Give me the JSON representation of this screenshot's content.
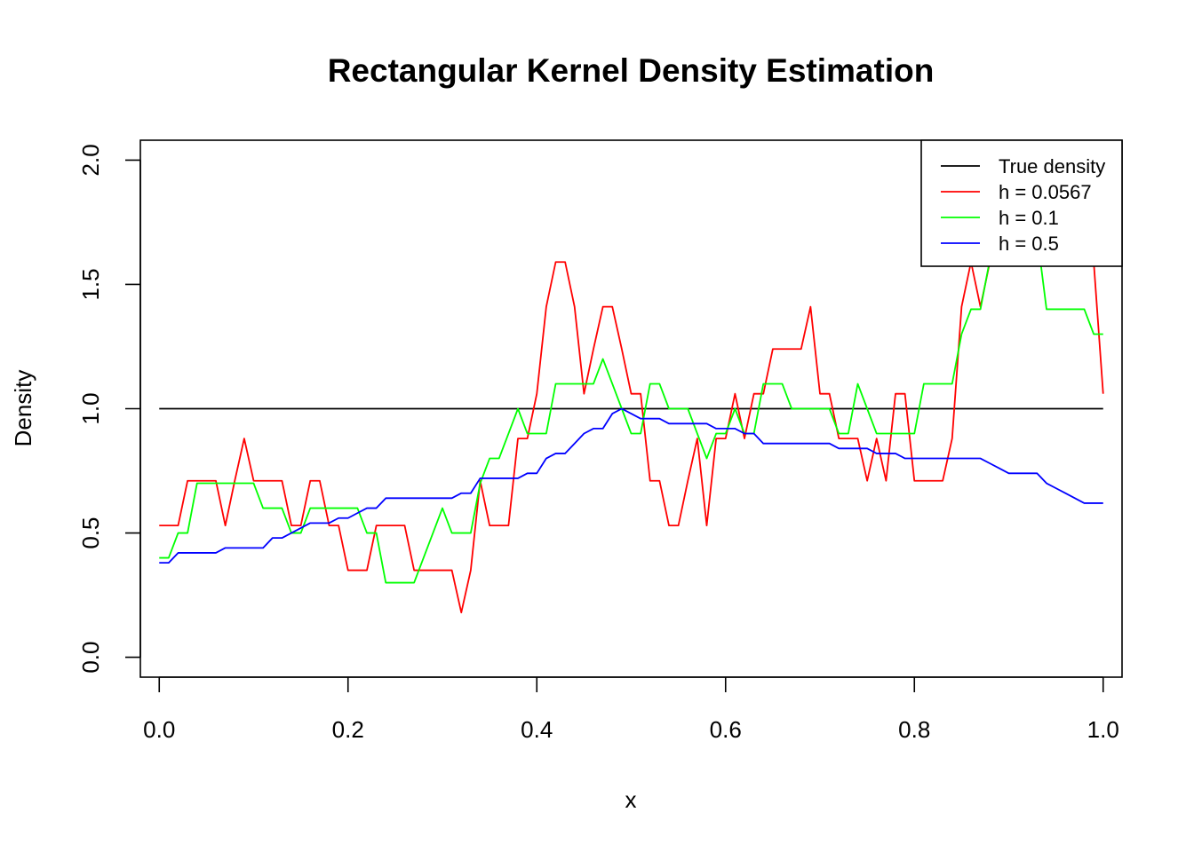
{
  "chart_data": {
    "type": "line",
    "title": "Rectangular Kernel Density Estimation",
    "xlabel": "x",
    "ylabel": "Density",
    "xlim": [
      -0.02,
      1.02
    ],
    "ylim": [
      -0.08,
      2.08
    ],
    "x_ticks": [
      "0.0",
      "0.2",
      "0.4",
      "0.6",
      "0.8",
      "1.0"
    ],
    "y_ticks": [
      "0.0",
      "0.5",
      "1.0",
      "1.5",
      "2.0"
    ],
    "legend_position": "top-right",
    "x": [
      0.0,
      0.01,
      0.02,
      0.03,
      0.04,
      0.05,
      0.06,
      0.07,
      0.08,
      0.09,
      0.1,
      0.11,
      0.12,
      0.13,
      0.14,
      0.15,
      0.16,
      0.17,
      0.18,
      0.19,
      0.2,
      0.21,
      0.22,
      0.23,
      0.24,
      0.25,
      0.26,
      0.27,
      0.28,
      0.29,
      0.3,
      0.31,
      0.32,
      0.33,
      0.34,
      0.35,
      0.36,
      0.37,
      0.38,
      0.39,
      0.4,
      0.41,
      0.42,
      0.43,
      0.44,
      0.45,
      0.46,
      0.47,
      0.48,
      0.49,
      0.5,
      0.51,
      0.52,
      0.53,
      0.54,
      0.55,
      0.56,
      0.57,
      0.58,
      0.59,
      0.6,
      0.61,
      0.62,
      0.63,
      0.64,
      0.65,
      0.66,
      0.67,
      0.68,
      0.69,
      0.7,
      0.71,
      0.72,
      0.73,
      0.74,
      0.75,
      0.76,
      0.77,
      0.78,
      0.79,
      0.8,
      0.81,
      0.82,
      0.83,
      0.84,
      0.85,
      0.86,
      0.87,
      0.88,
      0.89,
      0.9,
      0.91,
      0.92,
      0.93,
      0.94,
      0.95,
      0.96,
      0.97,
      0.98,
      0.99,
      1.0
    ],
    "series": [
      {
        "name": "True density",
        "color": "#000000",
        "values": [
          1,
          1,
          1,
          1,
          1,
          1,
          1,
          1,
          1,
          1,
          1,
          1,
          1,
          1,
          1,
          1,
          1,
          1,
          1,
          1,
          1,
          1,
          1,
          1,
          1,
          1,
          1,
          1,
          1,
          1,
          1,
          1,
          1,
          1,
          1,
          1,
          1,
          1,
          1,
          1,
          1,
          1,
          1,
          1,
          1,
          1,
          1,
          1,
          1,
          1,
          1,
          1,
          1,
          1,
          1,
          1,
          1,
          1,
          1,
          1,
          1,
          1,
          1,
          1,
          1,
          1,
          1,
          1,
          1,
          1,
          1,
          1,
          1,
          1,
          1,
          1,
          1,
          1,
          1,
          1,
          1,
          1,
          1,
          1,
          1,
          1,
          1,
          1,
          1,
          1,
          1,
          1,
          1,
          1,
          1,
          1,
          1,
          1,
          1,
          1,
          1
        ]
      },
      {
        "name": "h =  0.0567",
        "color": "#ff0000",
        "values": [
          0.53,
          0.53,
          0.53,
          0.71,
          0.71,
          0.71,
          0.71,
          0.53,
          0.71,
          0.88,
          0.71,
          0.71,
          0.71,
          0.71,
          0.53,
          0.53,
          0.71,
          0.71,
          0.53,
          0.53,
          0.35,
          0.35,
          0.35,
          0.53,
          0.53,
          0.53,
          0.53,
          0.35,
          0.35,
          0.35,
          0.35,
          0.35,
          0.18,
          0.35,
          0.71,
          0.53,
          0.53,
          0.53,
          0.88,
          0.88,
          1.06,
          1.41,
          1.59,
          1.59,
          1.41,
          1.06,
          1.24,
          1.41,
          1.41,
          1.24,
          1.06,
          1.06,
          0.71,
          0.71,
          0.53,
          0.53,
          0.71,
          0.88,
          0.53,
          0.88,
          0.88,
          1.06,
          0.88,
          1.06,
          1.06,
          1.24,
          1.24,
          1.24,
          1.24,
          1.41,
          1.06,
          1.06,
          0.88,
          0.88,
          0.88,
          0.71,
          0.88,
          0.71,
          1.06,
          1.06,
          0.71,
          0.71,
          0.71,
          0.71,
          0.88,
          1.41,
          1.59,
          1.41,
          1.59,
          1.77,
          1.94,
          1.94,
          1.77,
          1.77,
          1.94,
          1.94,
          1.77,
          1.77,
          1.59,
          1.59,
          1.06
        ]
      },
      {
        "name": "h =  0.1",
        "color": "#00ff00",
        "values": [
          0.4,
          0.4,
          0.5,
          0.5,
          0.7,
          0.7,
          0.7,
          0.7,
          0.7,
          0.7,
          0.7,
          0.6,
          0.6,
          0.6,
          0.5,
          0.5,
          0.6,
          0.6,
          0.6,
          0.6,
          0.6,
          0.6,
          0.5,
          0.5,
          0.3,
          0.3,
          0.3,
          0.3,
          0.4,
          0.5,
          0.6,
          0.5,
          0.5,
          0.5,
          0.7,
          0.8,
          0.8,
          0.9,
          1.0,
          0.9,
          0.9,
          0.9,
          1.1,
          1.1,
          1.1,
          1.1,
          1.1,
          1.2,
          1.1,
          1.0,
          0.9,
          0.9,
          1.1,
          1.1,
          1.0,
          1.0,
          1.0,
          0.9,
          0.8,
          0.9,
          0.9,
          1.0,
          0.9,
          0.9,
          1.1,
          1.1,
          1.1,
          1.0,
          1.0,
          1.0,
          1.0,
          1.0,
          0.9,
          0.9,
          1.1,
          1.0,
          0.9,
          0.9,
          0.9,
          0.9,
          0.9,
          1.1,
          1.1,
          1.1,
          1.1,
          1.3,
          1.4,
          1.4,
          1.6,
          1.7,
          1.8,
          1.8,
          1.8,
          1.7,
          1.4,
          1.4,
          1.4,
          1.4,
          1.4,
          1.3,
          1.3
        ]
      },
      {
        "name": "h =  0.5",
        "color": "#0000ff",
        "values": [
          0.38,
          0.38,
          0.42,
          0.42,
          0.42,
          0.42,
          0.42,
          0.44,
          0.44,
          0.44,
          0.44,
          0.44,
          0.48,
          0.48,
          0.5,
          0.52,
          0.54,
          0.54,
          0.54,
          0.56,
          0.56,
          0.58,
          0.6,
          0.6,
          0.64,
          0.64,
          0.64,
          0.64,
          0.64,
          0.64,
          0.64,
          0.64,
          0.66,
          0.66,
          0.72,
          0.72,
          0.72,
          0.72,
          0.72,
          0.74,
          0.74,
          0.8,
          0.82,
          0.82,
          0.86,
          0.9,
          0.92,
          0.92,
          0.98,
          1.0,
          0.98,
          0.96,
          0.96,
          0.96,
          0.94,
          0.94,
          0.94,
          0.94,
          0.94,
          0.92,
          0.92,
          0.92,
          0.9,
          0.9,
          0.86,
          0.86,
          0.86,
          0.86,
          0.86,
          0.86,
          0.86,
          0.86,
          0.84,
          0.84,
          0.84,
          0.84,
          0.82,
          0.82,
          0.82,
          0.8,
          0.8,
          0.8,
          0.8,
          0.8,
          0.8,
          0.8,
          0.8,
          0.8,
          0.78,
          0.76,
          0.74,
          0.74,
          0.74,
          0.74,
          0.7,
          0.68,
          0.66,
          0.64,
          0.62,
          0.62,
          0.62
        ]
      }
    ]
  }
}
